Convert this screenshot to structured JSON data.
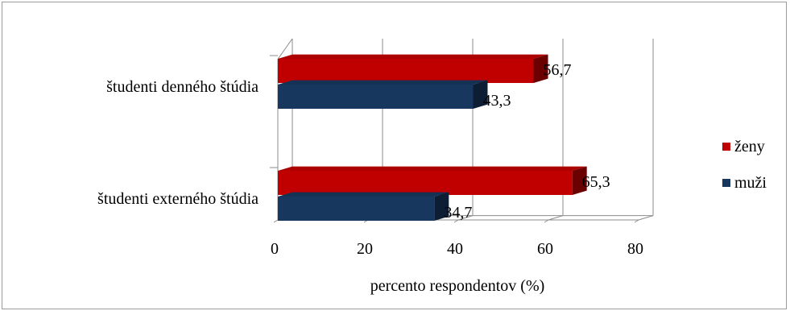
{
  "chart_data": {
    "type": "bar",
    "orientation": "horizontal",
    "three_d": true,
    "categories": [
      "študenti denného štúdia",
      "študenti externého štúdia"
    ],
    "series": [
      {
        "name": "ženy",
        "color": "#c00000",
        "values": [
          56.7,
          65.3
        ],
        "labels": [
          "56,7",
          "65,3"
        ]
      },
      {
        "name": "muži",
        "color": "#17375e",
        "values": [
          43.3,
          34.7
        ],
        "labels": [
          "43,3",
          "34,7"
        ]
      }
    ],
    "xlabel": "percento respondentov (%)",
    "xlim": [
      0,
      80
    ],
    "xticks": [
      "0",
      "20",
      "40",
      "60",
      "80"
    ],
    "grid": true,
    "legend_position": "right"
  }
}
